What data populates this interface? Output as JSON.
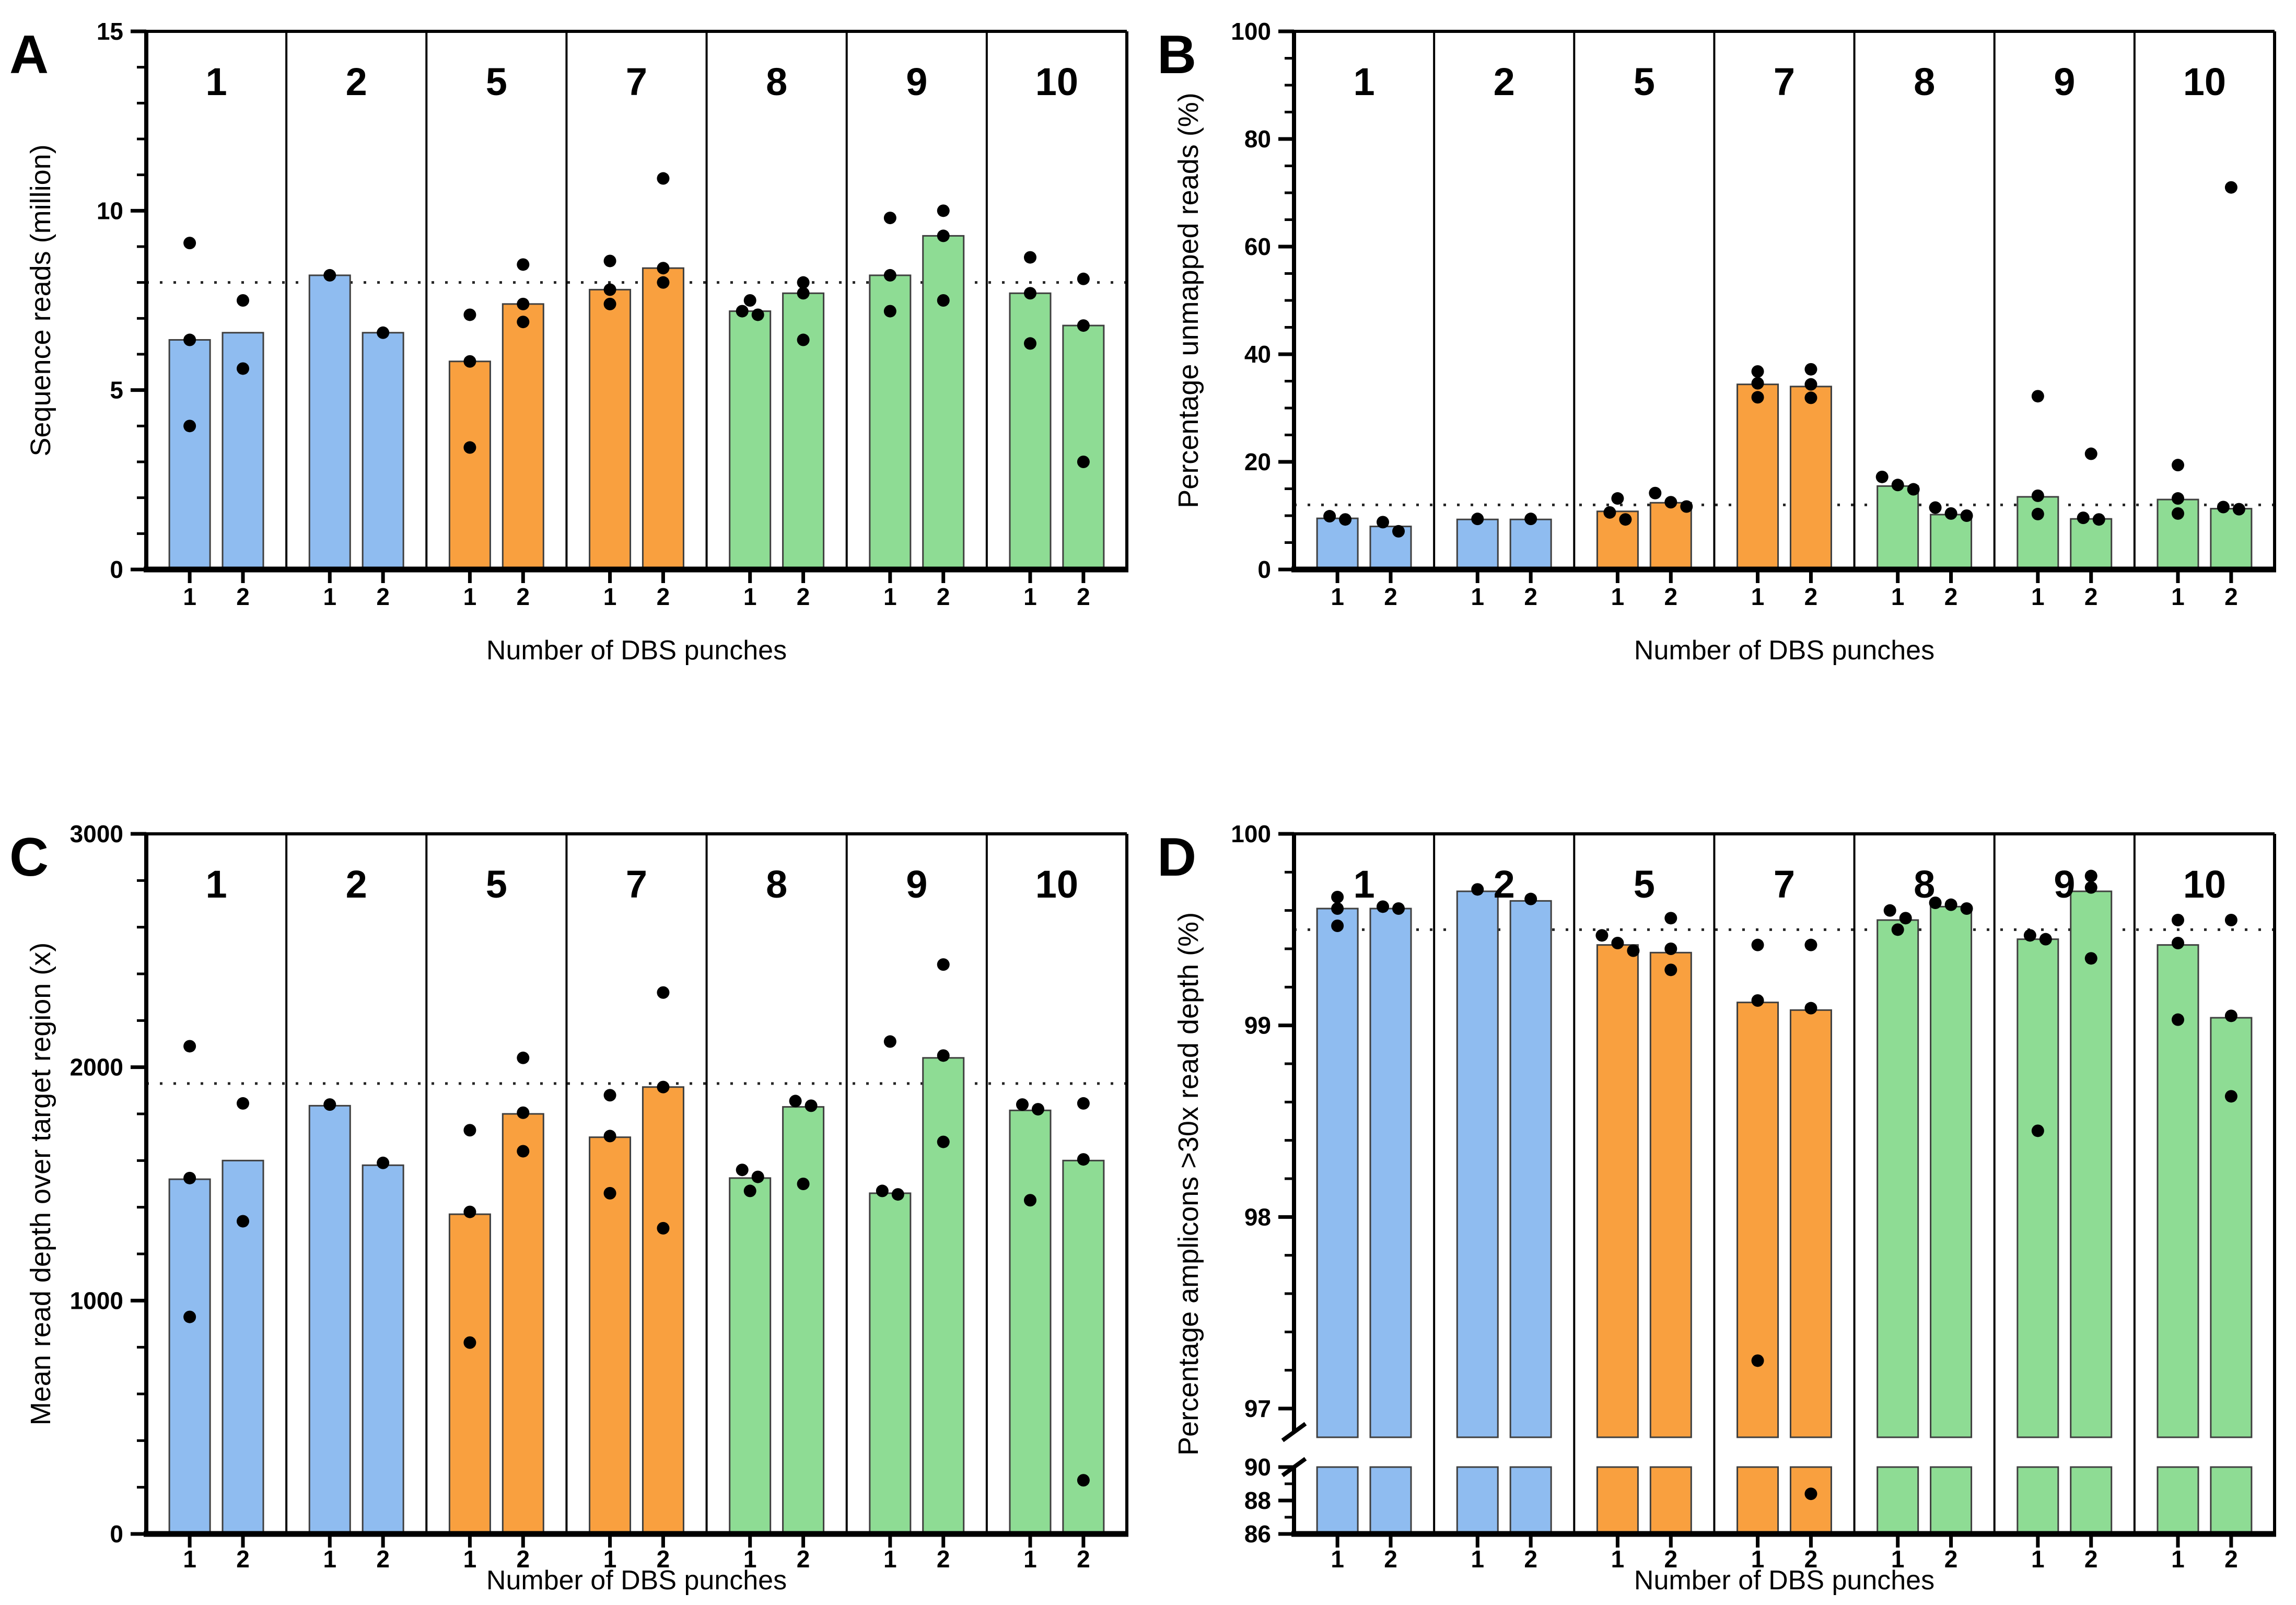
{
  "figure": {
    "xlabel": "Number of DBS punches",
    "group_labels": [
      "1",
      "2",
      "5",
      "7",
      "8",
      "9",
      "10"
    ],
    "bar_labels": [
      "1",
      "2"
    ],
    "colors": {
      "blue": "#8FBCF0",
      "orange": "#F9A03F",
      "green": "#8EDC94",
      "point": "#000000",
      "bar_border": "#3F3F3F",
      "axis": "#000000",
      "ref_line": "#262626"
    },
    "group_color_keys": [
      "blue",
      "blue",
      "orange",
      "orange",
      "green",
      "green",
      "green"
    ]
  },
  "chart_data": [
    {
      "panel": "A",
      "type": "bar",
      "ylabel": "Sequence reads (million)",
      "xlabel": "Number of DBS punches",
      "ylim": [
        0,
        15
      ],
      "yticks": [
        0,
        5,
        10,
        15
      ],
      "y_minor_step": 1,
      "ref_line": 8.0,
      "legend": "none",
      "grid": "off",
      "groups": [
        {
          "label": "1",
          "bars": [
            {
              "label": "1",
              "mean": 6.4,
              "replicates": [
                9.1,
                6.4,
                4.0
              ]
            },
            {
              "label": "2",
              "mean": 6.6,
              "replicates": [
                7.5,
                5.6
              ]
            }
          ]
        },
        {
          "label": "2",
          "bars": [
            {
              "label": "1",
              "mean": 8.2,
              "replicates": [
                8.2
              ]
            },
            {
              "label": "2",
              "mean": 6.6,
              "replicates": [
                6.6
              ]
            }
          ]
        },
        {
          "label": "5",
          "bars": [
            {
              "label": "1",
              "mean": 5.8,
              "replicates": [
                7.1,
                5.8,
                3.4
              ]
            },
            {
              "label": "2",
              "mean": 7.4,
              "replicates": [
                8.5,
                7.4,
                6.9
              ]
            }
          ]
        },
        {
          "label": "7",
          "bars": [
            {
              "label": "1",
              "mean": 7.8,
              "replicates": [
                8.6,
                7.8,
                7.4
              ]
            },
            {
              "label": "2",
              "mean": 8.4,
              "replicates": [
                10.9,
                8.4,
                8.0
              ]
            }
          ]
        },
        {
          "label": "8",
          "bars": [
            {
              "label": "1",
              "mean": 7.2,
              "replicates": [
                7.5,
                7.2,
                7.1
              ]
            },
            {
              "label": "2",
              "mean": 7.7,
              "replicates": [
                8.0,
                7.7,
                6.4
              ]
            }
          ]
        },
        {
          "label": "9",
          "bars": [
            {
              "label": "1",
              "mean": 8.2,
              "replicates": [
                9.8,
                8.2,
                7.2
              ]
            },
            {
              "label": "2",
              "mean": 9.3,
              "replicates": [
                10.0,
                9.3,
                7.5
              ]
            }
          ]
        },
        {
          "label": "10",
          "bars": [
            {
              "label": "1",
              "mean": 7.7,
              "replicates": [
                8.7,
                7.7,
                6.3
              ]
            },
            {
              "label": "2",
              "mean": 6.8,
              "replicates": [
                8.1,
                6.8,
                3.0
              ]
            }
          ]
        }
      ]
    },
    {
      "panel": "B",
      "type": "bar",
      "ylabel": "Percentage unmapped reads (%)",
      "xlabel": "Number of DBS punches",
      "ylim": [
        0,
        100
      ],
      "yticks": [
        0,
        20,
        40,
        60,
        80,
        100
      ],
      "y_minor_step": 5,
      "ref_line": 12.0,
      "legend": "none",
      "grid": "off",
      "groups": [
        {
          "label": "1",
          "bars": [
            {
              "label": "1",
              "mean": 9.5,
              "replicates": [
                9.9,
                9.3
              ]
            },
            {
              "label": "2",
              "mean": 8.0,
              "replicates": [
                8.8,
                7.1
              ]
            }
          ]
        },
        {
          "label": "2",
          "bars": [
            {
              "label": "1",
              "mean": 9.3,
              "replicates": [
                9.4
              ]
            },
            {
              "label": "2",
              "mean": 9.3,
              "replicates": [
                9.4
              ]
            }
          ]
        },
        {
          "label": "5",
          "bars": [
            {
              "label": "1",
              "mean": 10.8,
              "replicates": [
                13.2,
                10.6,
                9.3
              ]
            },
            {
              "label": "2",
              "mean": 12.4,
              "replicates": [
                14.2,
                12.5,
                11.7
              ]
            }
          ]
        },
        {
          "label": "7",
          "bars": [
            {
              "label": "1",
              "mean": 34.4,
              "replicates": [
                36.8,
                34.6,
                32.0
              ]
            },
            {
              "label": "2",
              "mean": 34.0,
              "replicates": [
                37.2,
                34.4,
                31.9
              ]
            }
          ]
        },
        {
          "label": "8",
          "bars": [
            {
              "label": "1",
              "mean": 15.5,
              "replicates": [
                17.2,
                15.7,
                14.9
              ]
            },
            {
              "label": "2",
              "mean": 10.2,
              "replicates": [
                11.5,
                10.4,
                10.0
              ]
            }
          ]
        },
        {
          "label": "9",
          "bars": [
            {
              "label": "1",
              "mean": 13.5,
              "replicates": [
                32.2,
                13.7,
                10.3
              ]
            },
            {
              "label": "2",
              "mean": 9.4,
              "replicates": [
                21.5,
                9.6,
                9.3
              ]
            }
          ]
        },
        {
          "label": "10",
          "bars": [
            {
              "label": "1",
              "mean": 13.0,
              "replicates": [
                19.4,
                13.2,
                10.4
              ]
            },
            {
              "label": "2",
              "mean": 11.3,
              "replicates": [
                71.0,
                11.6,
                11.2
              ]
            }
          ]
        }
      ]
    },
    {
      "panel": "C",
      "type": "bar",
      "ylabel": "Mean read depth over target region (x)",
      "xlabel": "Number of DBS punches",
      "ylim": [
        0,
        3000
      ],
      "yticks": [
        0,
        1000,
        2000,
        3000
      ],
      "y_minor_step": 200,
      "ref_line": 1930,
      "legend": "none",
      "grid": "off",
      "groups": [
        {
          "label": "1",
          "bars": [
            {
              "label": "1",
              "mean": 1520,
              "replicates": [
                2090,
                1525,
                930
              ]
            },
            {
              "label": "2",
              "mean": 1600,
              "replicates": [
                1845,
                1340
              ]
            }
          ]
        },
        {
          "label": "2",
          "bars": [
            {
              "label": "1",
              "mean": 1835,
              "replicates": [
                1840
              ]
            },
            {
              "label": "2",
              "mean": 1580,
              "replicates": [
                1590
              ]
            }
          ]
        },
        {
          "label": "5",
          "bars": [
            {
              "label": "1",
              "mean": 1370,
              "replicates": [
                1730,
                1380,
                820
              ]
            },
            {
              "label": "2",
              "mean": 1800,
              "replicates": [
                2040,
                1805,
                1640
              ]
            }
          ]
        },
        {
          "label": "7",
          "bars": [
            {
              "label": "1",
              "mean": 1700,
              "replicates": [
                1880,
                1705,
                1460
              ]
            },
            {
              "label": "2",
              "mean": 1915,
              "replicates": [
                2320,
                1915,
                1310
              ]
            }
          ]
        },
        {
          "label": "8",
          "bars": [
            {
              "label": "1",
              "mean": 1525,
              "replicates": [
                1560,
                1530,
                1470
              ]
            },
            {
              "label": "2",
              "mean": 1830,
              "replicates": [
                1855,
                1835,
                1500
              ]
            }
          ]
        },
        {
          "label": "9",
          "bars": [
            {
              "label": "1",
              "mean": 1460,
              "replicates": [
                2110,
                1470,
                1455
              ]
            },
            {
              "label": "2",
              "mean": 2040,
              "replicates": [
                2440,
                2050,
                1680
              ]
            }
          ]
        },
        {
          "label": "10",
          "bars": [
            {
              "label": "1",
              "mean": 1815,
              "replicates": [
                1840,
                1820,
                1430
              ]
            },
            {
              "label": "2",
              "mean": 1600,
              "replicates": [
                1845,
                1605,
                230
              ]
            }
          ]
        }
      ]
    },
    {
      "panel": "D",
      "type": "bar",
      "ylabel": "Percentage amplicons >30x read depth (%)",
      "xlabel": "Number of DBS punches",
      "ylim": [
        86,
        100
      ],
      "axis_break": {
        "lower_range": [
          86,
          90
        ],
        "upper_range": [
          97,
          100
        ],
        "lower_ticks": [
          86,
          88,
          90
        ],
        "upper_ticks": [
          97,
          98,
          99,
          100
        ],
        "lower_minor_step": 1,
        "upper_minor_step": 0.2
      },
      "ref_line": 99.5,
      "legend": "none",
      "grid": "off",
      "groups": [
        {
          "label": "1",
          "bars": [
            {
              "label": "1",
              "mean": 99.61,
              "replicates": [
                99.67,
                99.61,
                99.52
              ]
            },
            {
              "label": "2",
              "mean": 99.61,
              "replicates": [
                99.62,
                99.61
              ]
            }
          ]
        },
        {
          "label": "2",
          "bars": [
            {
              "label": "1",
              "mean": 99.7,
              "replicates": [
                99.71
              ]
            },
            {
              "label": "2",
              "mean": 99.65,
              "replicates": [
                99.66
              ]
            }
          ]
        },
        {
          "label": "5",
          "bars": [
            {
              "label": "1",
              "mean": 99.42,
              "replicates": [
                99.47,
                99.43,
                99.39
              ]
            },
            {
              "label": "2",
              "mean": 99.38,
              "replicates": [
                99.56,
                99.4,
                99.29
              ]
            }
          ]
        },
        {
          "label": "7",
          "bars": [
            {
              "label": "1",
              "mean": 99.12,
              "replicates": [
                99.42,
                99.13,
                97.25
              ]
            },
            {
              "label": "2",
              "mean": 99.08,
              "replicates": [
                99.42,
                99.09,
                88.4
              ]
            }
          ]
        },
        {
          "label": "8",
          "bars": [
            {
              "label": "1",
              "mean": 99.55,
              "replicates": [
                99.6,
                99.56,
                99.5
              ]
            },
            {
              "label": "2",
              "mean": 99.62,
              "replicates": [
                99.64,
                99.63,
                99.61
              ]
            }
          ]
        },
        {
          "label": "9",
          "bars": [
            {
              "label": "1",
              "mean": 99.45,
              "replicates": [
                99.47,
                99.45,
                98.45
              ]
            },
            {
              "label": "2",
              "mean": 99.7,
              "replicates": [
                99.78,
                99.72,
                99.35
              ]
            }
          ]
        },
        {
          "label": "10",
          "bars": [
            {
              "label": "1",
              "mean": 99.42,
              "replicates": [
                99.55,
                99.43,
                99.03
              ]
            },
            {
              "label": "2",
              "mean": 99.04,
              "replicates": [
                99.55,
                99.05,
                98.63
              ]
            }
          ]
        }
      ]
    }
  ]
}
